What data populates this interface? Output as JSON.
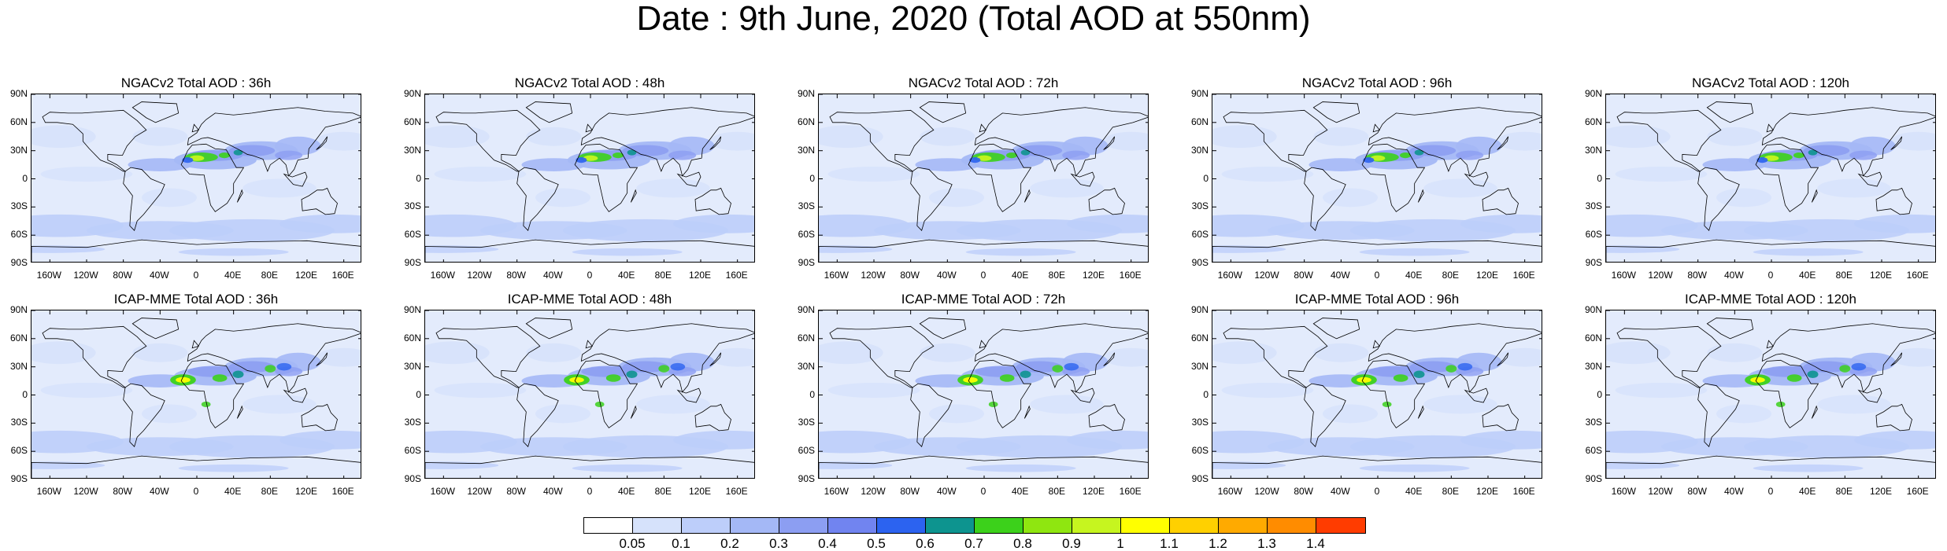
{
  "title": "Date : 9th June, 2020 (Total AOD at 550nm)",
  "panels": [
    {
      "title": "NGACv2 Total AOD : 36h",
      "model": "NGACv2",
      "lead": "36h"
    },
    {
      "title": "NGACv2 Total AOD : 48h",
      "model": "NGACv2",
      "lead": "48h"
    },
    {
      "title": "NGACv2 Total AOD : 72h",
      "model": "NGACv2",
      "lead": "72h"
    },
    {
      "title": "NGACv2 Total AOD : 96h",
      "model": "NGACv2",
      "lead": "96h"
    },
    {
      "title": "NGACv2 Total AOD : 120h",
      "model": "NGACv2",
      "lead": "120h"
    },
    {
      "title": "ICAP-MME Total AOD : 36h",
      "model": "ICAP-MME",
      "lead": "36h"
    },
    {
      "title": "ICAP-MME Total AOD : 48h",
      "model": "ICAP-MME",
      "lead": "48h"
    },
    {
      "title": "ICAP-MME Total AOD : 72h",
      "model": "ICAP-MME",
      "lead": "72h"
    },
    {
      "title": "ICAP-MME Total AOD : 96h",
      "model": "ICAP-MME",
      "lead": "96h"
    },
    {
      "title": "ICAP-MME Total AOD : 120h",
      "model": "ICAP-MME",
      "lead": "120h"
    }
  ],
  "lat_ticks": [
    "90N",
    "60N",
    "30N",
    "0",
    "30S",
    "60S",
    "90S"
  ],
  "lon_ticks": [
    "160W",
    "120W",
    "80W",
    "40W",
    "0",
    "40E",
    "80E",
    "120E",
    "160E"
  ],
  "colorbar": {
    "labels": [
      "0.05",
      "0.1",
      "0.2",
      "0.3",
      "0.4",
      "0.5",
      "0.6",
      "0.7",
      "0.8",
      "0.9",
      "1",
      "1.1",
      "1.2",
      "1.3",
      "1.4"
    ],
    "colors": [
      "#ffffff",
      "#d6e2fb",
      "#bdcefa",
      "#a4b8f6",
      "#8c9ef2",
      "#7184f0",
      "#2c63f0",
      "#0d948f",
      "#3cd11b",
      "#8fe610",
      "#c6f51f",
      "#ffff00",
      "#ffd000",
      "#ffaa00",
      "#ff8c00",
      "#ff3c00"
    ]
  },
  "legend_colors": {
    "land_outline": "#000000",
    "background_low": "#e3ebfc",
    "dust_max": "#ffff00"
  }
}
